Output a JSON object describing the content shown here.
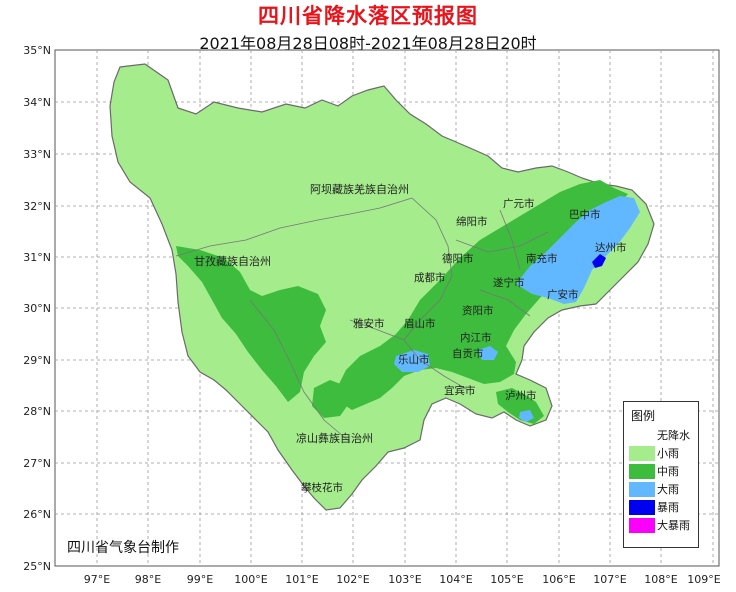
{
  "header": {
    "title": "四川省降水落区预报图",
    "subtitle": "2021年08月28日08时-2021年08月28日20时"
  },
  "axes": {
    "lat_labels": [
      "35°N",
      "34°N",
      "33°N",
      "32°N",
      "31°N",
      "30°N",
      "29°N",
      "28°N",
      "27°N",
      "26°N",
      "25°N"
    ],
    "lon_labels": [
      "97°E",
      "98°E",
      "99°E",
      "100°E",
      "101°E",
      "102°E",
      "103°E",
      "104°E",
      "105°E",
      "106°E",
      "107°E",
      "108°E",
      "109°E"
    ]
  },
  "regions": {
    "prefectures": [
      "阿坝藏族羌族自治州",
      "甘孜藏族自治州",
      "凉山彝族自治州"
    ],
    "cities": [
      "广元市",
      "巴中市",
      "绵阳市",
      "达州市",
      "德阳市",
      "南充市",
      "成都市",
      "遂宁市",
      "广安市",
      "雅安市",
      "眉山市",
      "资阳市",
      "内江市",
      "乐山市",
      "自贡市",
      "宜宾市",
      "泸州市",
      "攀枝花市"
    ]
  },
  "legend": {
    "title": "图例",
    "items": [
      {
        "label": "无降水",
        "color": "#ffffff"
      },
      {
        "label": "小雨",
        "color": "#a4ec8c"
      },
      {
        "label": "中雨",
        "color": "#3dbc3d"
      },
      {
        "label": "大雨",
        "color": "#62b8ff"
      },
      {
        "label": "暴雨",
        "color": "#0000f0"
      },
      {
        "label": "大暴雨",
        "color": "#fa00fa"
      }
    ]
  },
  "footer": {
    "credit": "四川省气象台制作"
  }
}
